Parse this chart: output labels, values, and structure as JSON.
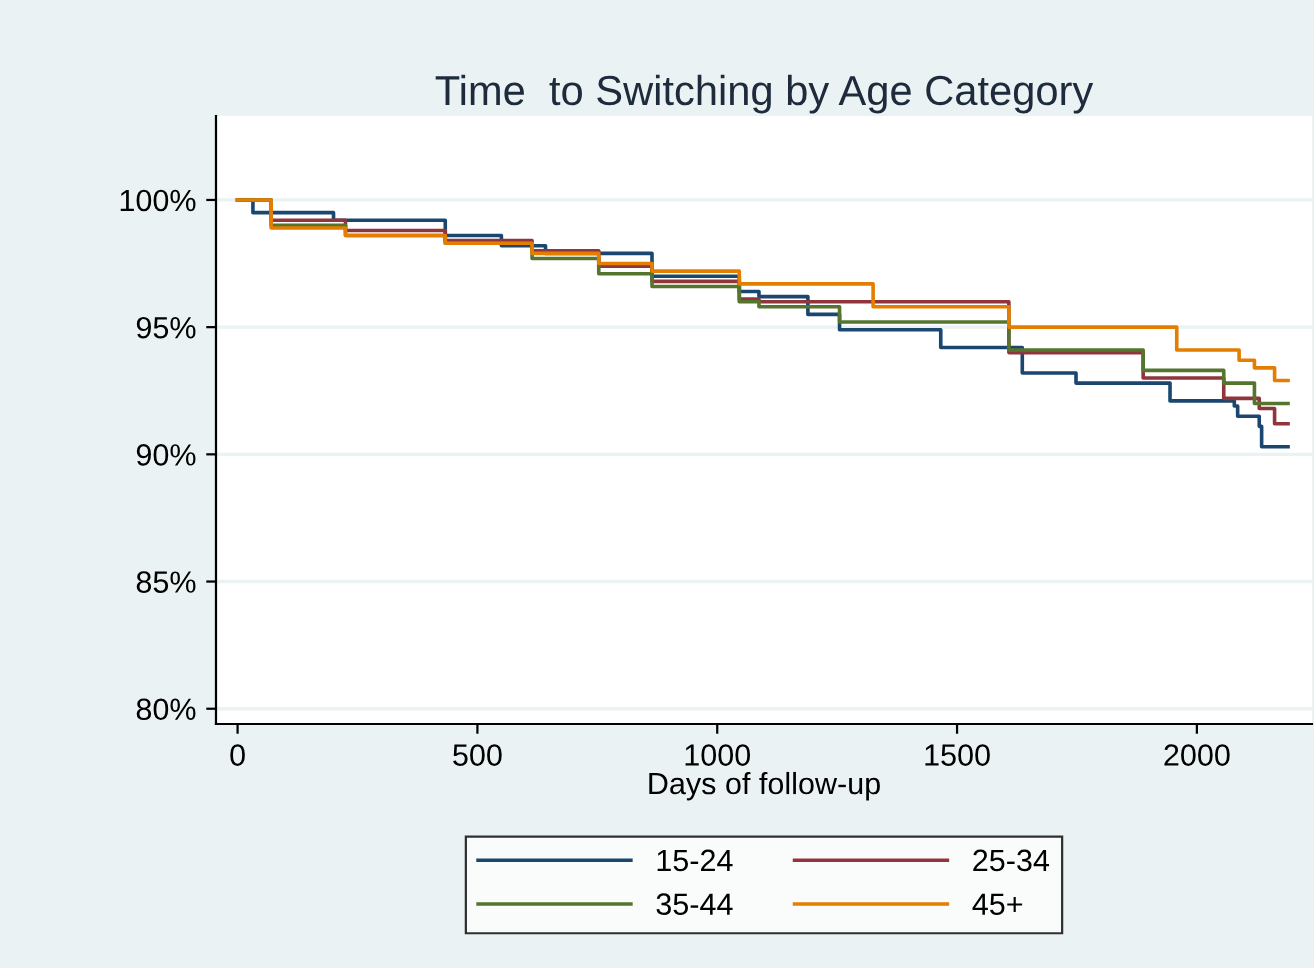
{
  "chart_data": {
    "type": "step",
    "title": "Time  to Switching by Age Category",
    "xlabel": "Days of follow-up",
    "xlim": [
      -45,
      2240
    ],
    "xticks": [
      0,
      500,
      1000,
      1500,
      2000
    ],
    "ylim": [
      79.4,
      103.3
    ],
    "yticks": [
      {
        "value": 80,
        "label": "80%"
      },
      {
        "value": 85,
        "label": "85%"
      },
      {
        "value": 90,
        "label": "90%"
      },
      {
        "value": 95,
        "label": "95%"
      },
      {
        "value": 100,
        "label": "100%"
      }
    ],
    "grid": "y",
    "legend": "bottom",
    "line_style": "solid",
    "series": [
      {
        "name": "15-24",
        "color": "#1a476f",
        "x": [
          0,
          32,
          200,
          433,
          550,
          642,
          864,
          1046,
          1087,
          1189,
          1255,
          1466,
          1636,
          1748,
          1944,
          2078,
          2085,
          2130,
          2135,
          2190
        ],
        "values": [
          100,
          99.5,
          99.2,
          98.6,
          98.2,
          97.9,
          97.0,
          96.4,
          96.2,
          95.5,
          94.9,
          94.2,
          93.2,
          92.8,
          92.1,
          91.9,
          91.5,
          91.1,
          90.3,
          90.3
        ]
      },
      {
        "name": "25-34",
        "color": "#90353b",
        "x": [
          0,
          70,
          225,
          433,
          614,
          753,
          864,
          1046,
          1087,
          1608,
          1888,
          2056,
          2130,
          2162,
          2190
        ],
        "values": [
          100,
          99.2,
          98.8,
          98.4,
          98.0,
          97.4,
          96.8,
          96.1,
          96.0,
          94.0,
          93.0,
          92.2,
          91.8,
          91.2,
          91.2
        ]
      },
      {
        "name": "35-44",
        "color": "#55752f",
        "x": [
          0,
          70,
          225,
          433,
          614,
          753,
          864,
          1046,
          1087,
          1255,
          1608,
          1888,
          2056,
          2120,
          2190
        ],
        "values": [
          100,
          99.0,
          98.6,
          98.3,
          97.7,
          97.1,
          96.6,
          96.0,
          95.8,
          95.2,
          94.1,
          93.3,
          92.8,
          92.0,
          92.0
        ]
      },
      {
        "name": "45+",
        "color": "#e37e00",
        "x": [
          0,
          70,
          225,
          433,
          614,
          753,
          864,
          1046,
          1325,
          1608,
          1958,
          2083,
          2088,
          2120,
          2162,
          2190
        ],
        "values": [
          100,
          98.9,
          98.6,
          98.3,
          97.9,
          97.5,
          97.2,
          96.7,
          95.8,
          95.0,
          94.1,
          94.1,
          93.7,
          93.4,
          92.9,
          92.9
        ]
      }
    ]
  }
}
